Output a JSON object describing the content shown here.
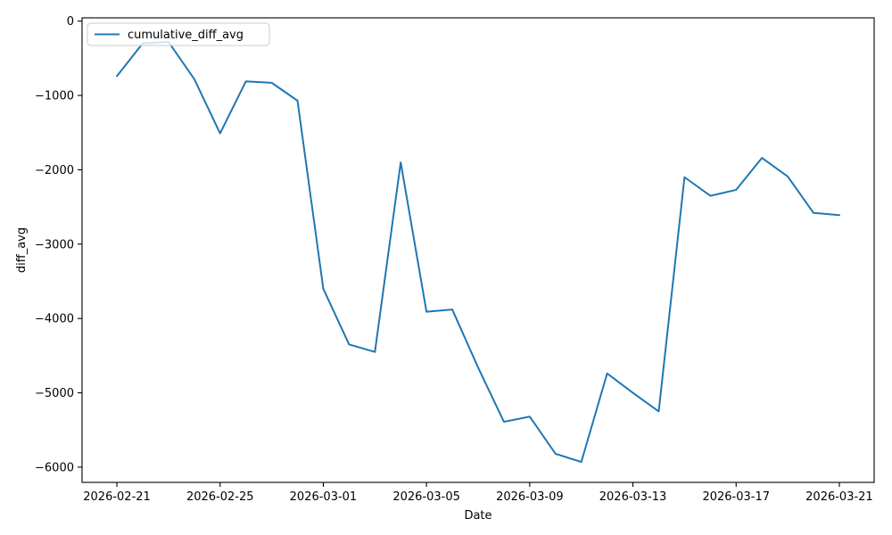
{
  "chart_data": {
    "type": "line",
    "title": "",
    "xlabel": "Date",
    "ylabel": "diff_avg",
    "grid": false,
    "legend": {
      "position": "upper left",
      "entries": [
        "cumulative_diff_avg"
      ]
    },
    "line_color": "#1f77b4",
    "spine_color": "#000000",
    "x": [
      "2026-02-21",
      "2026-02-22",
      "2026-02-23",
      "2026-02-24",
      "2026-02-25",
      "2026-02-26",
      "2026-02-27",
      "2026-02-28",
      "2026-03-01",
      "2026-03-02",
      "2026-03-03",
      "2026-03-04",
      "2026-03-05",
      "2026-03-06",
      "2026-03-07",
      "2026-03-08",
      "2026-03-09",
      "2026-03-10",
      "2026-03-11",
      "2026-03-12",
      "2026-03-13",
      "2026-03-14",
      "2026-03-15",
      "2026-03-16",
      "2026-03-17",
      "2026-03-18",
      "2026-03-19",
      "2026-03-20",
      "2026-03-21"
    ],
    "series": [
      {
        "name": "cumulative_diff_avg",
        "values": [
          -740,
          -300,
          -280,
          -780,
          -1510,
          -810,
          -830,
          -1070,
          -3600,
          -4350,
          -4450,
          -1900,
          -3910,
          -3880,
          -4660,
          -5390,
          -5320,
          -5820,
          -5930,
          -4740,
          -5000,
          -5250,
          -2100,
          -2350,
          -2270,
          -1840,
          -2090,
          -2580,
          -2610
        ]
      }
    ],
    "xtick_indices": [
      0,
      4,
      8,
      12,
      16,
      20,
      24,
      28
    ],
    "xtick_labels": [
      "2026-02-21",
      "2026-02-25",
      "2026-03-01",
      "2026-03-05",
      "2026-03-09",
      "2026-03-13",
      "2026-03-17",
      "2026-03-21"
    ],
    "ytick_values": [
      0,
      -1000,
      -2000,
      -3000,
      -4000,
      -5000,
      -6000
    ],
    "ytick_labels": [
      "0",
      "−1000",
      "−2000",
      "−3000",
      "−4000",
      "−5000",
      "−6000"
    ],
    "xlim_index": [
      -1.35,
      29.35
    ],
    "ylim": [
      -6205,
      44
    ]
  }
}
